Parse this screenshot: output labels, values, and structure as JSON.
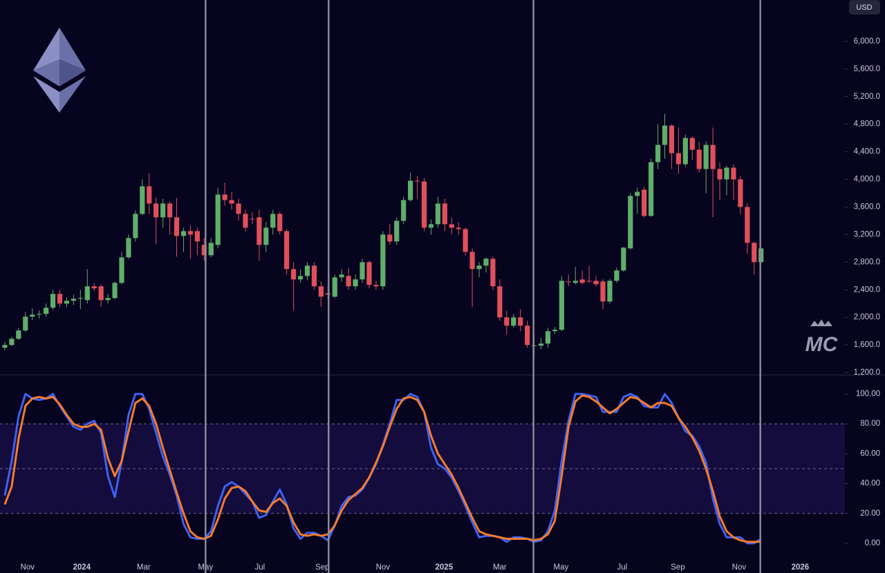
{
  "chart_data": {
    "type": "candlestick",
    "currency": "USD",
    "watermark": "MC",
    "up_color": "#5fae6a",
    "down_color": "#e0505a",
    "x": [
      0,
      1,
      2,
      3,
      4,
      5,
      6,
      7,
      8,
      9,
      10,
      11,
      12,
      13,
      14,
      15,
      16,
      17,
      18,
      19,
      20,
      21,
      22,
      23,
      24,
      25,
      26,
      27,
      28,
      29,
      30,
      31,
      32,
      33,
      34,
      35,
      36,
      37,
      38,
      39,
      40,
      41,
      42,
      43,
      44,
      45,
      46,
      47,
      48,
      49,
      50,
      51,
      52,
      53,
      54,
      55,
      56,
      57,
      58,
      59,
      60,
      61,
      62,
      63,
      64,
      65,
      66,
      67,
      68,
      69,
      70,
      71,
      72,
      73,
      74,
      75,
      76,
      77,
      78,
      79,
      80,
      81,
      82,
      83,
      84,
      85,
      86,
      87,
      88,
      89,
      90,
      91,
      92,
      93,
      94,
      95,
      96,
      97,
      98,
      99,
      100,
      101,
      102,
      103,
      104,
      105,
      106,
      107,
      108,
      109,
      110
    ],
    "ohlc": [
      [
        1560,
        1640,
        1520,
        1600
      ],
      [
        1600,
        1720,
        1580,
        1690
      ],
      [
        1690,
        1850,
        1670,
        1810
      ],
      [
        1810,
        2080,
        1790,
        2010
      ],
      [
        2010,
        2130,
        1960,
        2040
      ],
      [
        2040,
        2100,
        1980,
        2050
      ],
      [
        2050,
        2200,
        2010,
        2140
      ],
      [
        2140,
        2400,
        2110,
        2340
      ],
      [
        2340,
        2400,
        2150,
        2200
      ],
      [
        2200,
        2290,
        2150,
        2240
      ],
      [
        2240,
        2330,
        2180,
        2270
      ],
      [
        2270,
        2400,
        2120,
        2280
      ],
      [
        2250,
        2700,
        2200,
        2450
      ],
      [
        2450,
        2500,
        2380,
        2420
      ],
      [
        2450,
        2480,
        2150,
        2250
      ],
      [
        2250,
        2340,
        2200,
        2280
      ],
      [
        2280,
        2520,
        2260,
        2500
      ],
      [
        2500,
        2950,
        2480,
        2870
      ],
      [
        2870,
        3200,
        2850,
        3150
      ],
      [
        3150,
        3550,
        3100,
        3500
      ],
      [
        3500,
        4000,
        3480,
        3900
      ],
      [
        3900,
        4090,
        3500,
        3650
      ],
      [
        3650,
        3740,
        3060,
        3450
      ],
      [
        3450,
        3720,
        3300,
        3650
      ],
      [
        3650,
        3680,
        3200,
        3450
      ],
      [
        3450,
        3730,
        2880,
        3180
      ],
      [
        3180,
        3300,
        2950,
        3250
      ],
      [
        3250,
        3330,
        2850,
        3200
      ],
      [
        3250,
        3300,
        2900,
        3100
      ],
      [
        3050,
        3150,
        2820,
        2900
      ],
      [
        2900,
        3150,
        2870,
        3080
      ],
      [
        3050,
        3880,
        3000,
        3780
      ],
      [
        3780,
        3950,
        3620,
        3700
      ],
      [
        3700,
        3820,
        3560,
        3650
      ],
      [
        3650,
        3720,
        3400,
        3500
      ],
      [
        3500,
        3560,
        3250,
        3300
      ],
      [
        3430,
        3520,
        3350,
        3420
      ],
      [
        3450,
        3560,
        2820,
        3050
      ],
      [
        3050,
        3380,
        2950,
        3300
      ],
      [
        3300,
        3560,
        3200,
        3500
      ],
      [
        3500,
        3530,
        3200,
        3250
      ],
      [
        3250,
        3280,
        2620,
        2700
      ],
      [
        2700,
        2800,
        2100,
        2550
      ],
      [
        2550,
        2700,
        2500,
        2600
      ],
      [
        2600,
        2800,
        2540,
        2750
      ],
      [
        2750,
        2800,
        2400,
        2450
      ],
      [
        2450,
        2520,
        2150,
        2300
      ],
      [
        2350,
        2450,
        2250,
        2330
      ],
      [
        2300,
        2620,
        2280,
        2580
      ],
      [
        2580,
        2700,
        2520,
        2620
      ],
      [
        2600,
        2720,
        2400,
        2450
      ],
      [
        2450,
        2620,
        2400,
        2550
      ],
      [
        2550,
        2850,
        2500,
        2800
      ],
      [
        2800,
        2820,
        2420,
        2470
      ],
      [
        2470,
        2530,
        2400,
        2450
      ],
      [
        2450,
        3250,
        2400,
        3200
      ],
      [
        3200,
        3350,
        3050,
        3100
      ],
      [
        3100,
        3450,
        3050,
        3400
      ],
      [
        3400,
        3750,
        3350,
        3700
      ],
      [
        3700,
        4100,
        3680,
        3980
      ],
      [
        3980,
        4050,
        3720,
        3970
      ],
      [
        3970,
        4020,
        3250,
        3300
      ],
      [
        3300,
        3420,
        3200,
        3350
      ],
      [
        3350,
        3750,
        3300,
        3650
      ],
      [
        3650,
        3720,
        3250,
        3350
      ],
      [
        3350,
        3450,
        3200,
        3300
      ],
      [
        3300,
        3380,
        3200,
        3280
      ],
      [
        3280,
        3300,
        2900,
        2950
      ],
      [
        2950,
        3000,
        2150,
        2700
      ],
      [
        2700,
        2800,
        2580,
        2750
      ],
      [
        2750,
        2870,
        2650,
        2850
      ],
      [
        2850,
        2880,
        2400,
        2450
      ],
      [
        2450,
        2550,
        1950,
        2000
      ],
      [
        2000,
        2100,
        1750,
        1880
      ],
      [
        1880,
        2050,
        1850,
        2000
      ],
      [
        2000,
        2120,
        1800,
        1880
      ],
      [
        1880,
        1950,
        1560,
        1600
      ],
      [
        1590,
        1760,
        1400,
        1595
      ],
      [
        1590,
        1700,
        1540,
        1620
      ],
      [
        1620,
        1850,
        1560,
        1800
      ],
      [
        1800,
        1860,
        1760,
        1820
      ],
      [
        1820,
        2600,
        1800,
        2530
      ],
      [
        2520,
        2620,
        2450,
        2510
      ],
      [
        2500,
        2730,
        2480,
        2530
      ],
      [
        2550,
        2680,
        2480,
        2500
      ],
      [
        2530,
        2750,
        2500,
        2520
      ],
      [
        2530,
        2600,
        2450,
        2480
      ],
      [
        2520,
        2550,
        2120,
        2230
      ],
      [
        2230,
        2560,
        2200,
        2530
      ],
      [
        2530,
        2720,
        2500,
        2680
      ],
      [
        2680,
        3020,
        2660,
        3010
      ],
      [
        3000,
        3800,
        2980,
        3760
      ],
      [
        3760,
        3880,
        3500,
        3820
      ],
      [
        3850,
        3890,
        3450,
        3470
      ],
      [
        3470,
        4300,
        3460,
        4250
      ],
      [
        4250,
        4800,
        4150,
        4500
      ],
      [
        4500,
        4950,
        4300,
        4780
      ],
      [
        4780,
        4800,
        4150,
        4380
      ],
      [
        4380,
        4750,
        4080,
        4220
      ],
      [
        4220,
        4650,
        4180,
        4600
      ],
      [
        4600,
        4630,
        4280,
        4430
      ],
      [
        4430,
        4540,
        4100,
        4150
      ],
      [
        4150,
        4550,
        3800,
        4500
      ],
      [
        4500,
        4750,
        3450,
        4150
      ],
      [
        4150,
        4250,
        3700,
        4000
      ],
      [
        4000,
        4200,
        3770,
        4170
      ],
      [
        4170,
        4220,
        3700,
        4000
      ],
      [
        4000,
        4050,
        3500,
        3600
      ],
      [
        3600,
        3650,
        2920,
        3080
      ],
      [
        3080,
        3100,
        2620,
        2800
      ],
      [
        2800,
        3000,
        2780,
        3000
      ]
    ],
    "xlim": [
      -0.7,
      122.2
    ],
    "xticks": [
      {
        "value": 3.3,
        "label": "Nov"
      },
      {
        "value": 11.2,
        "label": "2024"
      },
      {
        "value": 20.2,
        "label": "Mar"
      },
      {
        "value": 29.2,
        "label": "May"
      },
      {
        "value": 37.1,
        "label": "Jul"
      },
      {
        "value": 46.2,
        "label": "Sep"
      },
      {
        "value": 55.0,
        "label": "Nov"
      },
      {
        "value": 63.9,
        "label": "2025"
      },
      {
        "value": 72.0,
        "label": "Mar"
      },
      {
        "value": 80.9,
        "label": "May"
      },
      {
        "value": 89.8,
        "label": "Jul"
      },
      {
        "value": 97.9,
        "label": "Sep"
      },
      {
        "value": 106.8,
        "label": "Nov"
      },
      {
        "value": 115.7,
        "label": "2026"
      }
    ],
    "ylim": [
      1170,
      6600
    ],
    "yticks": [
      {
        "value": 1200,
        "label": "1,200.0"
      },
      {
        "value": 1600,
        "label": "1,600.0"
      },
      {
        "value": 2000,
        "label": "2,000.0"
      },
      {
        "value": 2400,
        "label": "2,400.0"
      },
      {
        "value": 2800,
        "label": "2,800.0"
      },
      {
        "value": 3200,
        "label": "3,200.0"
      },
      {
        "value": 3600,
        "label": "3,600.0"
      },
      {
        "value": 4000,
        "label": "4,000.0"
      },
      {
        "value": 4400,
        "label": "4,400.0"
      },
      {
        "value": 4800,
        "label": "4,800.0"
      },
      {
        "value": 5200,
        "label": "5,200.0"
      },
      {
        "value": 5600,
        "label": "5,600.0"
      },
      {
        "value": 6000,
        "label": "6,000.0"
      }
    ],
    "vlines": [
      29.2,
      47.1,
      76.9,
      109.9
    ],
    "indicator": {
      "type": "line",
      "ylim": [
        -19.9,
        112.5
      ],
      "yticks": [
        {
          "value": 0,
          "label": "0.00"
        },
        {
          "value": 20,
          "label": "20.00"
        },
        {
          "value": 40,
          "label": "40.00"
        },
        {
          "value": 60,
          "label": "60.00"
        },
        {
          "value": 80,
          "label": "80.00"
        },
        {
          "value": 100,
          "label": "100.00"
        }
      ],
      "levels": [
        20,
        50,
        80
      ],
      "band": [
        20,
        80
      ],
      "series": [
        {
          "color": "#3d62f5",
          "values": [
            32,
            55,
            85,
            100,
            97,
            96,
            97,
            100,
            92,
            85,
            78,
            76,
            80,
            82,
            74,
            45,
            31,
            55,
            86,
            100,
            100,
            90,
            74,
            58,
            46,
            32,
            13,
            4,
            3,
            3,
            8,
            25,
            38,
            41,
            38,
            33,
            28,
            17,
            19,
            28,
            36,
            26,
            10,
            3,
            7,
            7,
            5,
            2,
            12,
            25,
            31,
            32,
            36,
            44,
            53,
            66,
            80,
            96,
            96,
            100,
            98,
            88,
            64,
            53,
            50,
            44,
            35,
            25,
            14,
            4,
            5,
            5,
            4,
            1,
            4,
            4,
            3,
            1,
            2,
            8,
            22,
            55,
            82,
            100,
            100,
            99,
            98,
            88,
            88,
            88,
            98,
            100,
            98,
            92,
            91,
            91,
            100,
            94,
            84,
            75,
            72,
            65,
            54,
            30,
            13,
            4,
            4,
            4,
            0,
            0,
            3
          ]
        },
        {
          "color": "#f77b2c",
          "values": [
            26,
            38,
            70,
            92,
            97,
            98,
            97,
            98,
            93,
            86,
            80,
            78,
            78,
            80,
            76,
            57,
            45,
            55,
            75,
            94,
            97,
            92,
            80,
            64,
            49,
            34,
            20,
            8,
            4,
            3,
            5,
            16,
            30,
            37,
            38,
            35,
            28,
            22,
            21,
            27,
            30,
            25,
            14,
            6,
            5,
            6,
            5,
            6,
            12,
            22,
            29,
            33,
            37,
            44,
            54,
            65,
            78,
            90,
            97,
            98,
            96,
            88,
            72,
            60,
            53,
            46,
            37,
            27,
            17,
            8,
            6,
            5,
            4,
            3,
            3,
            3,
            3,
            2,
            3,
            6,
            15,
            45,
            78,
            95,
            99,
            98,
            95,
            91,
            87,
            90,
            94,
            98,
            97,
            94,
            91,
            94,
            94,
            92,
            84,
            78,
            71,
            62,
            50,
            35,
            18,
            8,
            4,
            2,
            1,
            1,
            1
          ]
        }
      ]
    }
  }
}
